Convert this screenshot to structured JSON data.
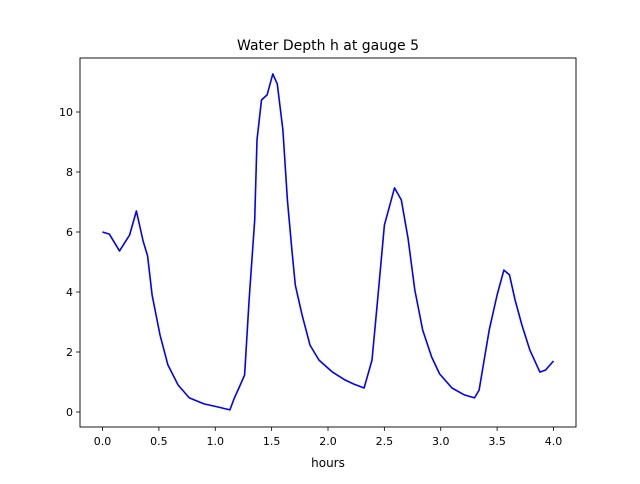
{
  "chart_data": {
    "type": "line",
    "title": "Water Depth h at gauge 5",
    "xlabel": "hours",
    "ylabel": "",
    "xlim": [
      -0.2,
      4.2
    ],
    "ylim": [
      -0.5,
      11.8
    ],
    "xticks": [
      0.0,
      0.5,
      1.0,
      1.5,
      2.0,
      2.5,
      3.0,
      3.5,
      4.0
    ],
    "xtick_labels": [
      "0.0",
      "0.5",
      "1.0",
      "1.5",
      "2.0",
      "2.5",
      "3.0",
      "3.5",
      "4.0"
    ],
    "yticks": [
      0,
      2,
      4,
      6,
      8,
      10
    ],
    "ytick_labels": [
      "0",
      "2",
      "4",
      "6",
      "8",
      "10"
    ],
    "grid": false,
    "series": [
      {
        "name": "h",
        "color": "#0000ff",
        "x": [
          0.0,
          0.06,
          0.15,
          0.24,
          0.3,
          0.36,
          0.4,
          0.44,
          0.51,
          0.58,
          0.67,
          0.77,
          0.9,
          1.02,
          1.13,
          1.17,
          1.21,
          1.26,
          1.3,
          1.35,
          1.37,
          1.41,
          1.46,
          1.51,
          1.55,
          1.6,
          1.64,
          1.68,
          1.71,
          1.77,
          1.84,
          1.92,
          2.04,
          2.15,
          2.23,
          2.32,
          2.39,
          2.44,
          2.5,
          2.59,
          2.65,
          2.71,
          2.77,
          2.84,
          2.92,
          2.99,
          3.1,
          3.21,
          3.3,
          3.34,
          3.43,
          3.5,
          3.56,
          3.61,
          3.66,
          3.72,
          3.79,
          3.88,
          3.93,
          4.0
        ],
        "y": [
          6.0,
          5.93,
          5.37,
          5.9,
          6.7,
          5.7,
          5.2,
          3.9,
          2.57,
          1.57,
          0.9,
          0.47,
          0.27,
          0.17,
          0.07,
          0.47,
          0.8,
          1.23,
          3.73,
          6.4,
          9.07,
          10.4,
          10.57,
          11.27,
          10.93,
          9.4,
          7.07,
          5.4,
          4.23,
          3.23,
          2.23,
          1.73,
          1.33,
          1.07,
          0.93,
          0.8,
          1.73,
          3.73,
          6.23,
          7.47,
          7.07,
          5.8,
          4.07,
          2.73,
          1.83,
          1.27,
          0.8,
          0.57,
          0.47,
          0.73,
          2.73,
          3.9,
          4.73,
          4.57,
          3.73,
          2.9,
          2.07,
          1.33,
          1.4,
          1.7
        ]
      }
    ]
  }
}
